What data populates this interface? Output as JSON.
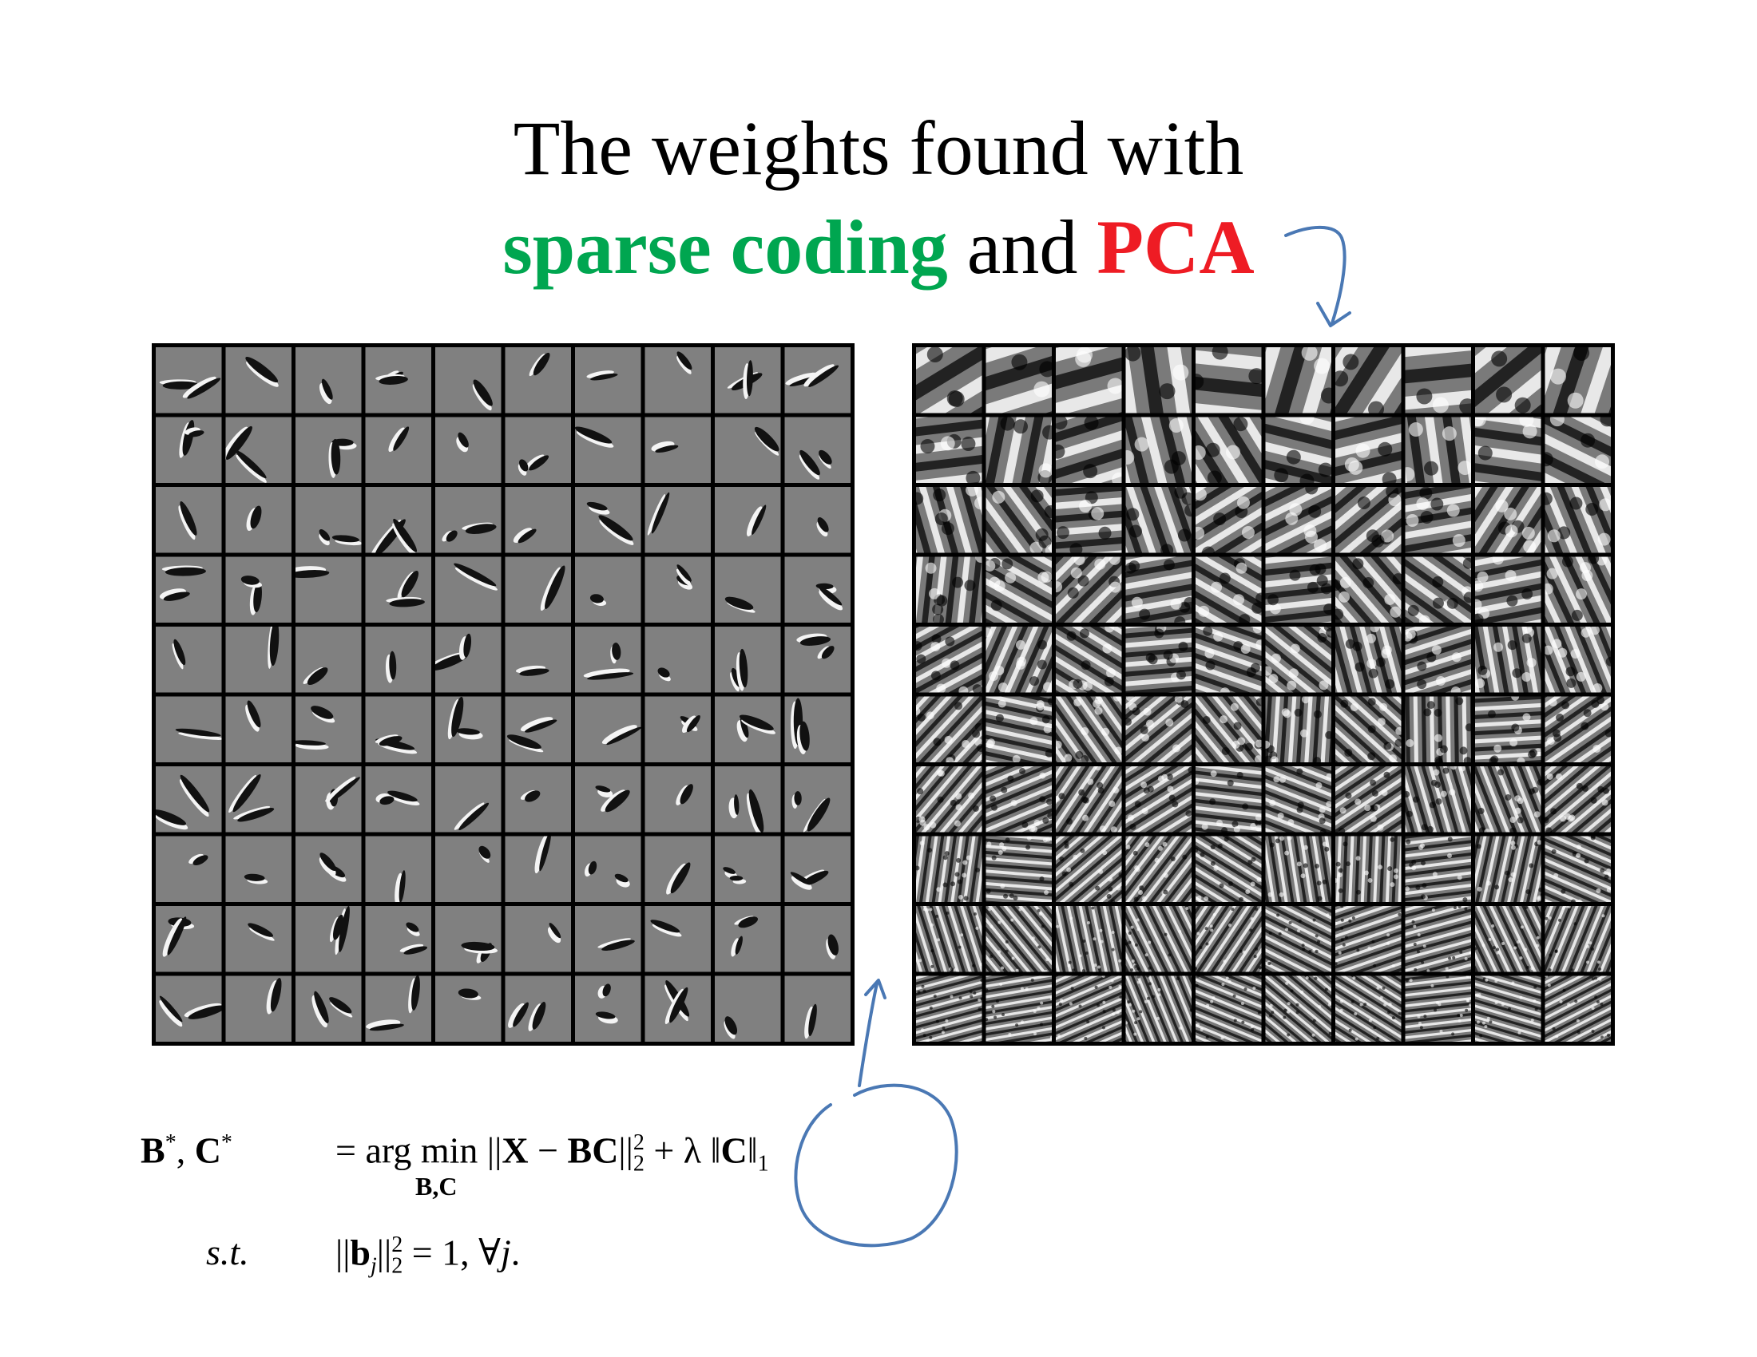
{
  "title": {
    "line1": "The weights found with",
    "sparse": "sparse coding",
    "and": " and ",
    "pca": "PCA"
  },
  "colors": {
    "sparse": "#00a650",
    "pca": "#ee1c24",
    "ink": "#4a78b4"
  },
  "grids": {
    "rows": 10,
    "cols": 10,
    "sparse_coding": "sparse-coding-weights",
    "pca": "pca-weights"
  },
  "equation": {
    "lhs_B": "B",
    "star": "*",
    "comma": ", ",
    "lhs_C": "C",
    "equals_argmin": "= arg min ||",
    "X": "X",
    "minus": " − ",
    "BC": "BC",
    "norm_close": "||",
    "sq": "2",
    "sub2": "2",
    "plus_lambda": " + λ ‖",
    "C": "C",
    "norm1_close": "‖",
    "sub1": "1",
    "under": "B,C",
    "st": "s.t.",
    "c_open": "||",
    "bj": "b",
    "j": "j",
    "c_close": "||",
    "c_rest": " = 1,  ∀",
    "j2": "j",
    "dot": "."
  }
}
